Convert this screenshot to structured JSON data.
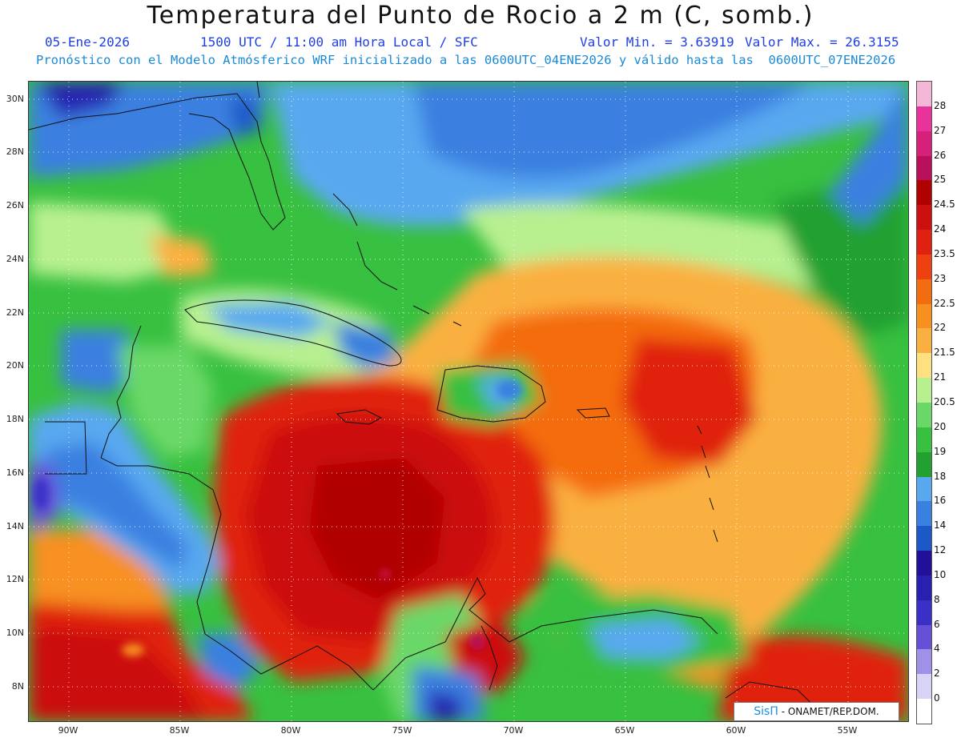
{
  "header": {
    "title": "Temperatura del Punto de Rocio a 2 m (C, somb.)",
    "date": "05-Ene-2026",
    "time": "1500 UTC / 11:00 am Hora Local / SFC",
    "min": "Valor Min. = 3.63919",
    "max": "Valor Max. = 26.3155",
    "model": "Pronóstico con el Modelo Atmósferico WRF inicializado a las 0600UTC_04ENE2026 y válido hasta las  0600UTC_07ENE2026"
  },
  "axes": {
    "lat": [
      "30N",
      "28N",
      "26N",
      "24N",
      "22N",
      "20N",
      "18N",
      "16N",
      "14N",
      "12N",
      "10N",
      "8N"
    ],
    "lon": [
      "90W",
      "85W",
      "80W",
      "75W",
      "70W",
      "65W",
      "60W",
      "55W"
    ]
  },
  "colorbar": {
    "labels": [
      "28",
      "27",
      "26",
      "25",
      "24.5",
      "24",
      "23.5",
      "23",
      "22.5",
      "22",
      "21.5",
      "21",
      "20.5",
      "20",
      "19",
      "18",
      "16",
      "14",
      "12",
      "10",
      "8",
      "6",
      "4",
      "2",
      "0"
    ],
    "colors": [
      "#f5b7d8",
      "#e8339a",
      "#d6207a",
      "#b8105a",
      "#b00000",
      "#cc1010",
      "#e02010",
      "#ee4010",
      "#f46c10",
      "#f89020",
      "#fab040",
      "#fde080",
      "#b8f090",
      "#6ad868",
      "#38c040",
      "#22a030",
      "#58a8f0",
      "#3a80e0",
      "#1c58c8",
      "#22109a",
      "#2820b0",
      "#3a30c8",
      "#6650d8",
      "#a090e8",
      "#d8d4f8",
      "#ffffff"
    ]
  },
  "credit": {
    "brand": "SisΠ",
    "org": "- ONAMET/REP.DOM."
  }
}
